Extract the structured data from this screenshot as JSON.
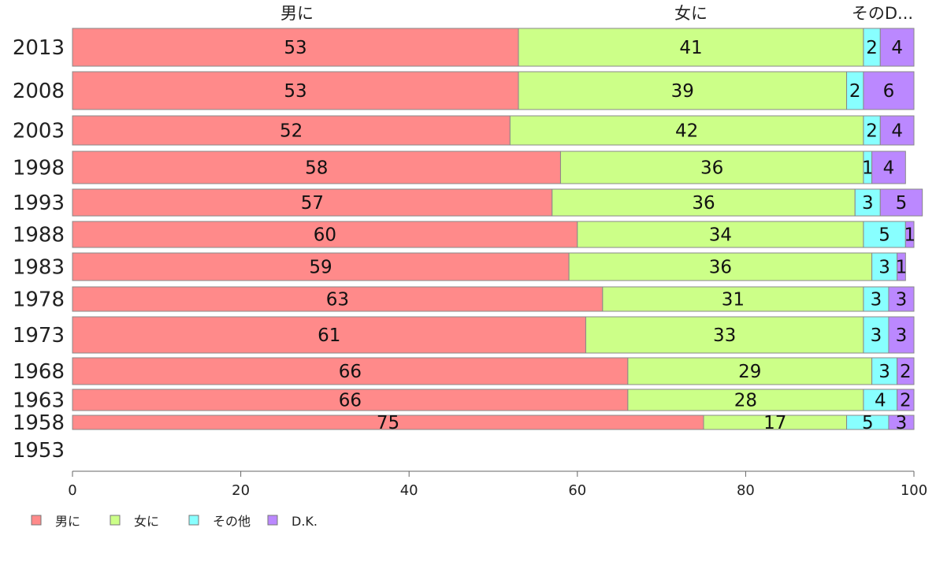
{
  "chart_data": {
    "type": "bar",
    "orientation": "horizontal",
    "stacked": true,
    "categories": [
      "2013",
      "2008",
      "2003",
      "1998",
      "1993",
      "1988",
      "1983",
      "1978",
      "1973",
      "1968",
      "1963",
      "1958",
      "1953"
    ],
    "series": [
      {
        "name": "男に",
        "color": "#ff8a8a",
        "values": [
          53,
          53,
          52,
          58,
          57,
          60,
          59,
          63,
          61,
          66,
          66,
          75,
          null
        ]
      },
      {
        "name": "女に",
        "color": "#ccff88",
        "values": [
          41,
          39,
          42,
          36,
          36,
          34,
          36,
          31,
          33,
          29,
          28,
          17,
          null
        ]
      },
      {
        "name": "その他",
        "color": "#88ffff",
        "values": [
          2,
          2,
          2,
          1,
          3,
          5,
          3,
          3,
          3,
          3,
          4,
          5,
          null
        ]
      },
      {
        "name": "D.K.",
        "color": "#bb88ff",
        "values": [
          4,
          6,
          4,
          4,
          5,
          1,
          1,
          3,
          3,
          2,
          2,
          3,
          null
        ]
      }
    ],
    "top_labels": [
      "男に",
      "女に",
      "そのD..."
    ],
    "xlim": [
      0,
      100
    ],
    "xticks": [
      0,
      20,
      40,
      60,
      80,
      100
    ],
    "legend_position": "bottom-left"
  }
}
